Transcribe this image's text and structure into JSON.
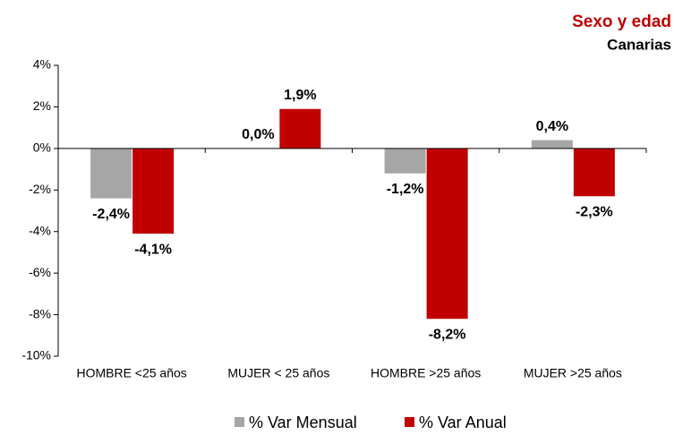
{
  "chart_data": {
    "type": "bar",
    "title": "Sexo y edad",
    "subtitle": "Canarias",
    "categories": [
      "HOMBRE <25 años",
      "MUJER < 25 años",
      "HOMBRE >25 años",
      "MUJER >25 años"
    ],
    "series": [
      {
        "name": "% Var Mensual",
        "color": "#a6a6a6",
        "values": [
          -2.4,
          0.0,
          -1.2,
          0.4
        ],
        "value_labels": [
          "-2,4%",
          "0,0%",
          "-1,2%",
          "0,4%"
        ]
      },
      {
        "name": "% Var Anual",
        "color": "#c00000",
        "values": [
          -4.1,
          1.9,
          -8.2,
          -2.3
        ],
        "value_labels": [
          "-4,1%",
          "1,9%",
          "-8,2%",
          "-2,3%"
        ]
      }
    ],
    "ylim": [
      -10,
      4
    ],
    "yticks": [
      {
        "value": -10,
        "label": "-10%"
      },
      {
        "value": -8,
        "label": "-8%"
      },
      {
        "value": -6,
        "label": "-6%"
      },
      {
        "value": -4,
        "label": "-4%"
      },
      {
        "value": -2,
        "label": "-2%"
      },
      {
        "value": 0,
        "label": "0%"
      },
      {
        "value": 2,
        "label": "2%"
      },
      {
        "value": 4,
        "label": "4%"
      }
    ],
    "grid": false,
    "legend": "bottom"
  }
}
